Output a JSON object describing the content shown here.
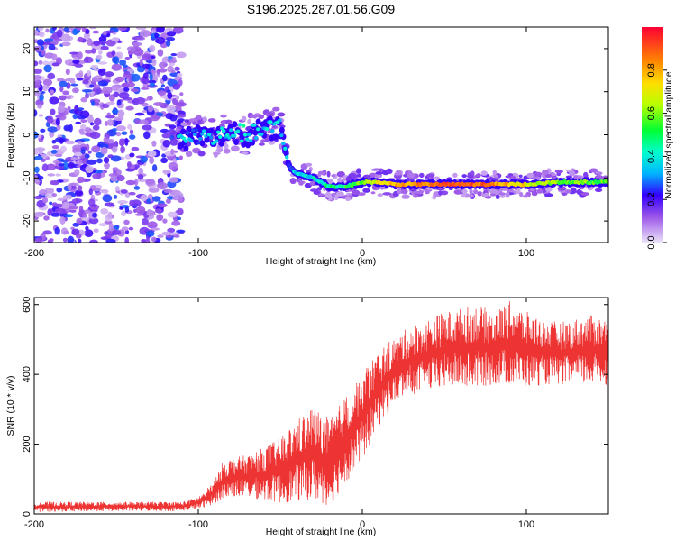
{
  "title": "S196.2025.287.01.56.G09",
  "colors": {
    "snr_line": "#ee3333",
    "axis": "#000000",
    "background": "#ffffff"
  },
  "chart_data": [
    {
      "type": "heatmap",
      "xlabel": "Height of straight line (km)",
      "ylabel": "Frequency (Hz)",
      "xlim": [
        -200,
        150
      ],
      "ylim": [
        -25,
        25
      ],
      "xticks": [
        -200,
        -100,
        0,
        100
      ],
      "yticks": [
        -20,
        -10,
        0,
        10,
        20
      ],
      "colorbar": {
        "label": "Normalized spectral amplitude",
        "range": [
          0,
          1
        ],
        "ticks": [
          0.0,
          0.2,
          0.4,
          0.6,
          0.8
        ]
      },
      "ridge": [
        {
          "x": -200,
          "f": null,
          "amp": 0.15
        },
        {
          "x": -120,
          "f": null,
          "amp": 0.2
        },
        {
          "x": -110,
          "f": -1,
          "amp": 0.35
        },
        {
          "x": -100,
          "f": 0,
          "amp": 0.3
        },
        {
          "x": -90,
          "f": -1,
          "amp": 0.35
        },
        {
          "x": -80,
          "f": 1,
          "amp": 0.35
        },
        {
          "x": -70,
          "f": 0,
          "amp": 0.4
        },
        {
          "x": -60,
          "f": 1,
          "amp": 0.35
        },
        {
          "x": -50,
          "f": 2,
          "amp": 0.35
        },
        {
          "x": -45,
          "f": -7,
          "amp": 0.3
        },
        {
          "x": -40,
          "f": -9,
          "amp": 0.35
        },
        {
          "x": -30,
          "f": -10,
          "amp": 0.4
        },
        {
          "x": -20,
          "f": -12,
          "amp": 0.45
        },
        {
          "x": -10,
          "f": -12,
          "amp": 0.5
        },
        {
          "x": 0,
          "f": -11,
          "amp": 0.6
        },
        {
          "x": 10,
          "f": -11,
          "amp": 0.7
        },
        {
          "x": 20,
          "f": -11.5,
          "amp": 0.8
        },
        {
          "x": 40,
          "f": -11.5,
          "amp": 0.85
        },
        {
          "x": 60,
          "f": -11.5,
          "amp": 0.9
        },
        {
          "x": 80,
          "f": -11.5,
          "amp": 0.85
        },
        {
          "x": 100,
          "f": -11.5,
          "amp": 0.7
        },
        {
          "x": 120,
          "f": -11,
          "amp": 0.6
        },
        {
          "x": 150,
          "f": -11,
          "amp": 0.55
        }
      ]
    },
    {
      "type": "line",
      "xlabel": "Height of straight line (km)",
      "ylabel": "SNR (10 * v/v)",
      "xlim": [
        -200,
        150
      ],
      "ylim": [
        0,
        620
      ],
      "xticks": [
        -200,
        -100,
        0,
        100
      ],
      "yticks": [
        0,
        200,
        400,
        600
      ],
      "series": [
        {
          "name": "SNR",
          "x": [
            -200,
            -150,
            -110,
            -100,
            -95,
            -90,
            -85,
            -80,
            -70,
            -60,
            -50,
            -40,
            -30,
            -20,
            -10,
            0,
            10,
            20,
            30,
            40,
            50,
            60,
            70,
            80,
            90,
            100,
            110,
            120,
            130,
            140,
            150
          ],
          "lower": [
            5,
            8,
            8,
            15,
            20,
            30,
            40,
            50,
            45,
            40,
            30,
            35,
            40,
            20,
            90,
            150,
            250,
            320,
            340,
            350,
            360,
            360,
            360,
            370,
            370,
            360,
            370,
            370,
            370,
            370,
            370
          ],
          "upper": [
            35,
            35,
            35,
            50,
            70,
            100,
            150,
            160,
            170,
            190,
            220,
            270,
            310,
            270,
            340,
            410,
            470,
            510,
            540,
            560,
            580,
            590,
            600,
            580,
            610,
            580,
            560,
            550,
            560,
            570,
            560
          ]
        }
      ]
    }
  ]
}
